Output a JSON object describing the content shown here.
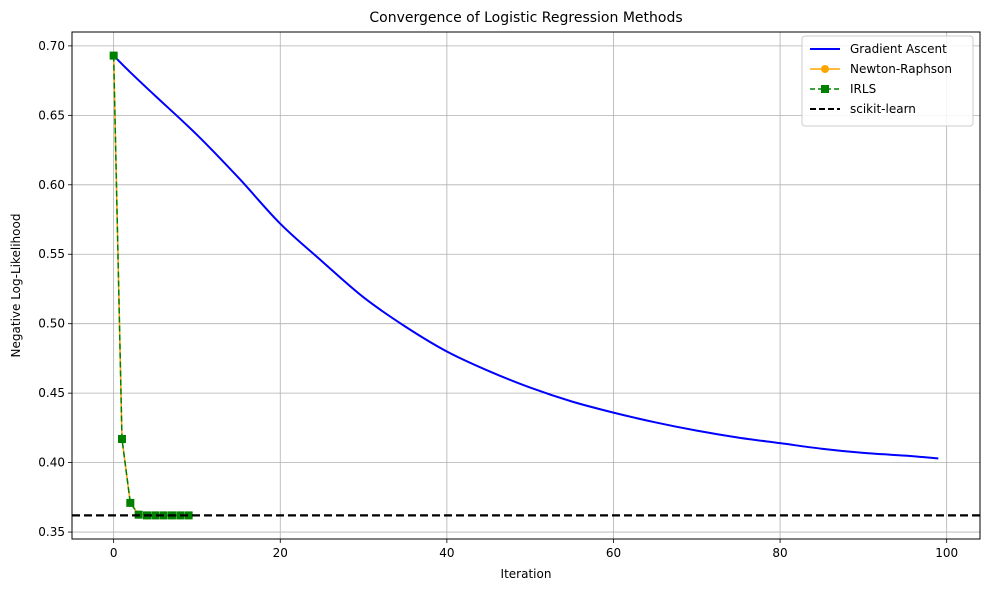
{
  "chart_data": {
    "type": "line",
    "title": "Convergence of Logistic Regression Methods",
    "xlabel": "Iteration",
    "ylabel": "Negative Log-Likelihood",
    "xlim": [
      -5,
      104
    ],
    "ylim": [
      0.345,
      0.71
    ],
    "x_ticks": [
      0,
      20,
      40,
      60,
      80,
      100
    ],
    "y_ticks": [
      0.35,
      0.4,
      0.45,
      0.5,
      0.55,
      0.6,
      0.65,
      0.7
    ],
    "grid": true,
    "legend_position": "top-right",
    "series": [
      {
        "name": "Gradient Ascent",
        "color": "#0000ff",
        "style": "solid",
        "marker": "none",
        "x": [
          0,
          2,
          5,
          10,
          15,
          20,
          25,
          30,
          35,
          40,
          45,
          50,
          55,
          60,
          65,
          70,
          75,
          80,
          85,
          90,
          95,
          99
        ],
        "y": [
          0.693,
          0.681,
          0.664,
          0.636,
          0.605,
          0.572,
          0.545,
          0.519,
          0.498,
          0.48,
          0.466,
          0.454,
          0.444,
          0.436,
          0.429,
          0.423,
          0.418,
          0.414,
          0.41,
          0.407,
          0.405,
          0.403
        ]
      },
      {
        "name": "Newton-Raphson",
        "color": "#ffa500",
        "style": "solid",
        "marker": "circle",
        "x": [
          0,
          1,
          2,
          3,
          4,
          5,
          6,
          7,
          8,
          9
        ],
        "y": [
          0.693,
          0.417,
          0.371,
          0.3625,
          0.362,
          0.362,
          0.362,
          0.362,
          0.362,
          0.362
        ]
      },
      {
        "name": "IRLS",
        "color": "#008000",
        "style": "dashed",
        "marker": "square",
        "x": [
          0,
          1,
          2,
          3,
          4,
          5,
          6,
          7,
          8,
          9
        ],
        "y": [
          0.693,
          0.417,
          0.371,
          0.3625,
          0.362,
          0.362,
          0.362,
          0.362,
          0.362,
          0.362
        ]
      },
      {
        "name": "scikit-learn",
        "color": "#000000",
        "style": "dashed",
        "marker": "none",
        "type": "hline",
        "y": 0.362
      }
    ]
  }
}
